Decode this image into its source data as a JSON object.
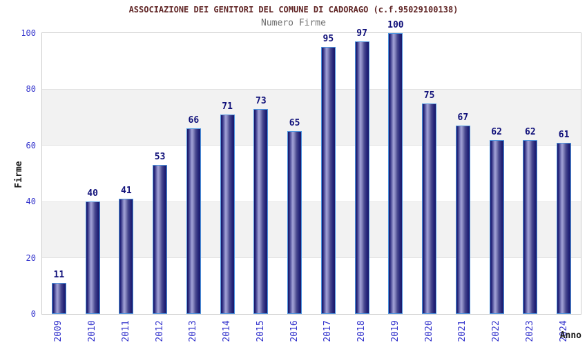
{
  "header": {
    "title": "ASSOCIAZIONE DEI GENITORI DEL COMUNE DI CADORAGO (c.f.95029100138)",
    "subtitle": "Numero Firme"
  },
  "chart_data": {
    "type": "bar",
    "title": "ASSOCIAZIONE DEI GENITORI DEL COMUNE DI CADORAGO (c.f.95029100138)",
    "subtitle": "Numero Firme",
    "categories": [
      "2009",
      "2010",
      "2011",
      "2012",
      "2013",
      "2014",
      "2015",
      "2016",
      "2017",
      "2018",
      "2019",
      "2020",
      "2021",
      "2022",
      "2023",
      "2024"
    ],
    "values": [
      11,
      40,
      41,
      53,
      66,
      71,
      73,
      65,
      95,
      97,
      100,
      75,
      67,
      62,
      62,
      61
    ],
    "xlabel": "Anno",
    "ylabel": "Firme",
    "ylim": [
      0,
      100
    ],
    "yticks": [
      0,
      20,
      40,
      60,
      80,
      100
    ],
    "grid": "alternating horizontal gray bands between 20-40 and 60-80",
    "legend_position": "none",
    "bar_labels_shown": true
  },
  "colors": {
    "title": "#612626",
    "subtitle": "#6e6e6e",
    "axis_tick": "#3333cc",
    "value_label": "#11117a",
    "axis_name": "#1a1a1a",
    "band": "#f2f2f2",
    "plot_border": "#cccccc",
    "bar_border": "#4e96e0",
    "bar_dark": "#18186a",
    "bar_light": "#a2a2d8"
  }
}
